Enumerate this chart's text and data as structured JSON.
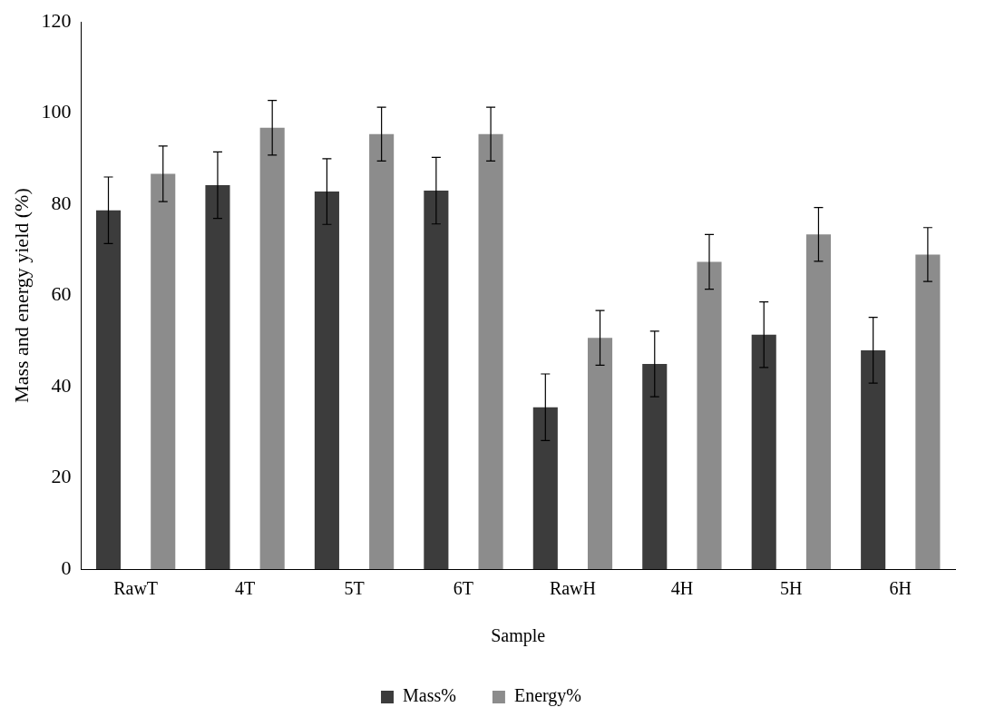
{
  "chart_data": {
    "type": "bar",
    "xlabel": "Sample",
    "ylabel": "Mass and energy yield (%)",
    "categories": [
      "RawT",
      "4T",
      "5T",
      "6T",
      "RawH",
      "4H",
      "5H",
      "6H"
    ],
    "series": [
      {
        "name": "Mass%",
        "color": "#3c3c3c",
        "values": [
          78.7,
          84.2,
          82.8,
          83.0,
          35.5,
          45.0,
          51.4,
          48.0
        ],
        "errors": [
          7.3,
          7.3,
          7.2,
          7.3,
          7.3,
          7.2,
          7.2,
          7.2
        ]
      },
      {
        "name": "Energy%",
        "color": "#8c8c8c",
        "values": [
          86.7,
          96.8,
          95.4,
          95.4,
          50.7,
          67.4,
          73.4,
          69.0
        ],
        "errors": [
          6.1,
          6.0,
          5.9,
          5.9,
          6.0,
          6.0,
          5.9,
          5.9
        ]
      }
    ],
    "ylim": [
      0,
      120
    ],
    "yticks": [
      0,
      20,
      40,
      60,
      80,
      100,
      120
    ],
    "grid": false,
    "legend": "bottom"
  }
}
